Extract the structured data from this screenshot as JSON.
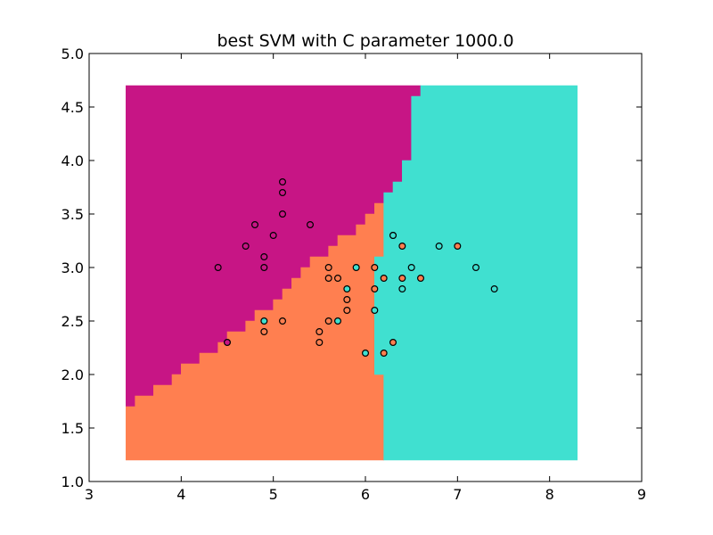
{
  "chart_data": {
    "type": "scatter",
    "title": "best SVM with C parameter 1000.0",
    "xlabel": "",
    "ylabel": "",
    "xlim": [
      3,
      9
    ],
    "ylim": [
      1.0,
      5.0
    ],
    "xticks": [
      3,
      4,
      5,
      6,
      7,
      8,
      9
    ],
    "xtick_labels": [
      "3",
      "4",
      "5",
      "6",
      "7",
      "8",
      "9"
    ],
    "yticks": [
      1.0,
      1.5,
      2.0,
      2.5,
      3.0,
      3.5,
      4.0,
      4.5,
      5.0
    ],
    "ytick_labels": [
      "1.0",
      "1.5",
      "2.0",
      "2.5",
      "3.0",
      "3.5",
      "4.0",
      "4.5",
      "5.0"
    ],
    "grid": false,
    "colors": {
      "class0": "#c71585",
      "class1": "#ff7f50",
      "class2": "#40e0d0"
    },
    "decision_regions": [
      {
        "class": 0,
        "polygon": [
          [
            3.4,
            4.7
          ],
          [
            6.6,
            4.7
          ],
          [
            6.6,
            4.6
          ],
          [
            6.5,
            4.6
          ],
          [
            6.5,
            4.0
          ],
          [
            6.4,
            4.0
          ],
          [
            6.4,
            3.8
          ],
          [
            6.3,
            3.8
          ],
          [
            6.3,
            3.7
          ],
          [
            6.2,
            3.7
          ],
          [
            6.2,
            3.6
          ],
          [
            6.1,
            3.6
          ],
          [
            6.1,
            3.5
          ],
          [
            6.0,
            3.5
          ],
          [
            6.0,
            3.4
          ],
          [
            5.9,
            3.4
          ],
          [
            5.9,
            3.3
          ],
          [
            5.7,
            3.3
          ],
          [
            5.7,
            3.2
          ],
          [
            5.6,
            3.2
          ],
          [
            5.6,
            3.1
          ],
          [
            5.4,
            3.1
          ],
          [
            5.4,
            3.0
          ],
          [
            5.3,
            3.0
          ],
          [
            5.3,
            2.9
          ],
          [
            5.2,
            2.9
          ],
          [
            5.2,
            2.8
          ],
          [
            5.1,
            2.8
          ],
          [
            5.1,
            2.7
          ],
          [
            5.0,
            2.7
          ],
          [
            5.0,
            2.6
          ],
          [
            4.8,
            2.6
          ],
          [
            4.8,
            2.5
          ],
          [
            4.7,
            2.5
          ],
          [
            4.7,
            2.4
          ],
          [
            4.5,
            2.4
          ],
          [
            4.5,
            2.3
          ],
          [
            4.4,
            2.3
          ],
          [
            4.4,
            2.2
          ],
          [
            4.2,
            2.2
          ],
          [
            4.2,
            2.1
          ],
          [
            4.0,
            2.1
          ],
          [
            4.0,
            2.0
          ],
          [
            3.9,
            2.0
          ],
          [
            3.9,
            1.9
          ],
          [
            3.7,
            1.9
          ],
          [
            3.7,
            1.8
          ],
          [
            3.5,
            1.8
          ],
          [
            3.5,
            1.7
          ],
          [
            3.4,
            1.7
          ]
        ]
      },
      {
        "class": 1,
        "polygon": [
          [
            3.4,
            1.7
          ],
          [
            3.5,
            1.7
          ],
          [
            3.5,
            1.8
          ],
          [
            3.7,
            1.8
          ],
          [
            3.7,
            1.9
          ],
          [
            3.9,
            1.9
          ],
          [
            3.9,
            2.0
          ],
          [
            4.0,
            2.0
          ],
          [
            4.0,
            2.1
          ],
          [
            4.2,
            2.1
          ],
          [
            4.2,
            2.2
          ],
          [
            4.4,
            2.2
          ],
          [
            4.4,
            2.3
          ],
          [
            4.5,
            2.3
          ],
          [
            4.5,
            2.4
          ],
          [
            4.7,
            2.4
          ],
          [
            4.7,
            2.5
          ],
          [
            4.8,
            2.5
          ],
          [
            4.8,
            2.6
          ],
          [
            5.0,
            2.6
          ],
          [
            5.0,
            2.7
          ],
          [
            5.1,
            2.7
          ],
          [
            5.1,
            2.8
          ],
          [
            5.2,
            2.8
          ],
          [
            5.2,
            2.9
          ],
          [
            5.3,
            2.9
          ],
          [
            5.3,
            3.0
          ],
          [
            5.4,
            3.0
          ],
          [
            5.4,
            3.1
          ],
          [
            5.6,
            3.1
          ],
          [
            5.6,
            3.2
          ],
          [
            5.7,
            3.2
          ],
          [
            5.7,
            3.3
          ],
          [
            5.9,
            3.3
          ],
          [
            5.9,
            3.4
          ],
          [
            6.0,
            3.4
          ],
          [
            6.0,
            3.5
          ],
          [
            6.1,
            3.5
          ],
          [
            6.1,
            3.6
          ],
          [
            6.2,
            3.6
          ],
          [
            6.2,
            1.2
          ],
          [
            3.4,
            1.2
          ]
        ]
      },
      {
        "class": 2,
        "polygon": [
          [
            6.6,
            4.7
          ],
          [
            8.3,
            4.7
          ],
          [
            8.3,
            1.2
          ],
          [
            6.2,
            1.2
          ],
          [
            6.2,
            2.0
          ],
          [
            6.1,
            2.0
          ],
          [
            6.1,
            3.1
          ],
          [
            6.2,
            3.1
          ],
          [
            6.2,
            3.7
          ],
          [
            6.3,
            3.7
          ],
          [
            6.3,
            3.8
          ],
          [
            6.4,
            3.8
          ],
          [
            6.4,
            4.0
          ],
          [
            6.5,
            4.0
          ],
          [
            6.5,
            4.6
          ],
          [
            6.6,
            4.6
          ]
        ]
      }
    ],
    "points": [
      {
        "x": 5.1,
        "y": 3.8,
        "class": 0
      },
      {
        "x": 5.1,
        "y": 3.7,
        "class": 0
      },
      {
        "x": 5.1,
        "y": 3.5,
        "class": 0
      },
      {
        "x": 5.4,
        "y": 3.4,
        "class": 0
      },
      {
        "x": 4.8,
        "y": 3.4,
        "class": 0
      },
      {
        "x": 5.0,
        "y": 3.3,
        "class": 0
      },
      {
        "x": 4.7,
        "y": 3.2,
        "class": 0
      },
      {
        "x": 4.9,
        "y": 3.1,
        "class": 0
      },
      {
        "x": 4.9,
        "y": 3.0,
        "class": 0
      },
      {
        "x": 4.4,
        "y": 3.0,
        "class": 0
      },
      {
        "x": 4.5,
        "y": 2.3,
        "class": 0
      },
      {
        "x": 6.3,
        "y": 3.3,
        "class": 1
      },
      {
        "x": 6.4,
        "y": 3.2,
        "class": 1
      },
      {
        "x": 7.0,
        "y": 3.2,
        "class": 1
      },
      {
        "x": 5.6,
        "y": 3.0,
        "class": 1
      },
      {
        "x": 6.1,
        "y": 3.0,
        "class": 1
      },
      {
        "x": 5.6,
        "y": 2.9,
        "class": 1
      },
      {
        "x": 5.7,
        "y": 2.9,
        "class": 1
      },
      {
        "x": 6.2,
        "y": 2.9,
        "class": 1
      },
      {
        "x": 6.4,
        "y": 2.9,
        "class": 1
      },
      {
        "x": 6.6,
        "y": 2.9,
        "class": 1
      },
      {
        "x": 5.8,
        "y": 2.7,
        "class": 1
      },
      {
        "x": 5.8,
        "y": 2.6,
        "class": 1
      },
      {
        "x": 6.1,
        "y": 2.8,
        "class": 1
      },
      {
        "x": 5.1,
        "y": 2.5,
        "class": 1
      },
      {
        "x": 5.6,
        "y": 2.5,
        "class": 1
      },
      {
        "x": 4.9,
        "y": 2.4,
        "class": 1
      },
      {
        "x": 5.5,
        "y": 2.4,
        "class": 1
      },
      {
        "x": 5.5,
        "y": 2.3,
        "class": 1
      },
      {
        "x": 6.3,
        "y": 2.3,
        "class": 1
      },
      {
        "x": 6.2,
        "y": 2.2,
        "class": 1
      },
      {
        "x": 6.3,
        "y": 3.3,
        "class": 2
      },
      {
        "x": 6.8,
        "y": 3.2,
        "class": 2
      },
      {
        "x": 5.9,
        "y": 3.0,
        "class": 2
      },
      {
        "x": 6.5,
        "y": 3.0,
        "class": 2
      },
      {
        "x": 7.2,
        "y": 3.0,
        "class": 2
      },
      {
        "x": 5.8,
        "y": 2.8,
        "class": 2
      },
      {
        "x": 6.4,
        "y": 2.8,
        "class": 2
      },
      {
        "x": 7.4,
        "y": 2.8,
        "class": 2
      },
      {
        "x": 6.1,
        "y": 2.6,
        "class": 2
      },
      {
        "x": 4.9,
        "y": 2.5,
        "class": 2
      },
      {
        "x": 5.7,
        "y": 2.5,
        "class": 2
      },
      {
        "x": 6.0,
        "y": 2.2,
        "class": 2
      }
    ]
  }
}
